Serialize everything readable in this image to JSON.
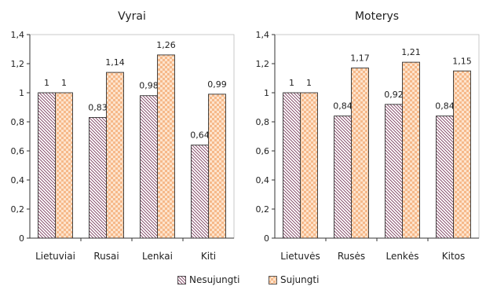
{
  "chart_data": [
    {
      "type": "bar",
      "title": "Vyrai",
      "categories": [
        "Lietuviai",
        "Rusai",
        "Lenkai",
        "Kiti"
      ],
      "series": [
        {
          "name": "Nesujungti",
          "values": [
            1,
            0.83,
            0.98,
            0.64
          ],
          "labels": [
            "1",
            "0,83",
            "0,98",
            "0,64"
          ]
        },
        {
          "name": "Sujungti",
          "values": [
            1,
            1.14,
            1.26,
            0.99
          ],
          "labels": [
            "1",
            "1,14",
            "1,26",
            "0,99"
          ]
        }
      ],
      "ylim": [
        0,
        1.4
      ],
      "yticks": [
        "0",
        "0,2",
        "0,4",
        "0,6",
        "0,8",
        "1",
        "1,2",
        "1,4"
      ],
      "grid": false
    },
    {
      "type": "bar",
      "title": "Moterys",
      "categories": [
        "Lietuvės",
        "Rusės",
        "Lenkės",
        "Kitos"
      ],
      "series": [
        {
          "name": "Nesujungti",
          "values": [
            1,
            0.84,
            0.92,
            0.84
          ],
          "labels": [
            "1",
            "0,84",
            "0,92",
            "0,84"
          ]
        },
        {
          "name": "Sujungti",
          "values": [
            1,
            1.17,
            1.21,
            1.15
          ],
          "labels": [
            "1",
            "1,17",
            "1,21",
            "1,15"
          ]
        }
      ],
      "ylim": [
        0,
        1.4
      ],
      "yticks": [
        "0",
        "0,2",
        "0,4",
        "0,6",
        "0,8",
        "1",
        "1,2",
        "1,4"
      ],
      "grid": false
    }
  ],
  "legend": {
    "placement": "bottom",
    "items": [
      {
        "label": "Nesujungti",
        "pattern": "hatch"
      },
      {
        "label": "Sujungti",
        "pattern": "checker"
      }
    ]
  },
  "colors": {
    "nesujungti_stroke": "#7a3a5a",
    "sujungti_fill": "#f6b98a",
    "axis": "#333333"
  }
}
